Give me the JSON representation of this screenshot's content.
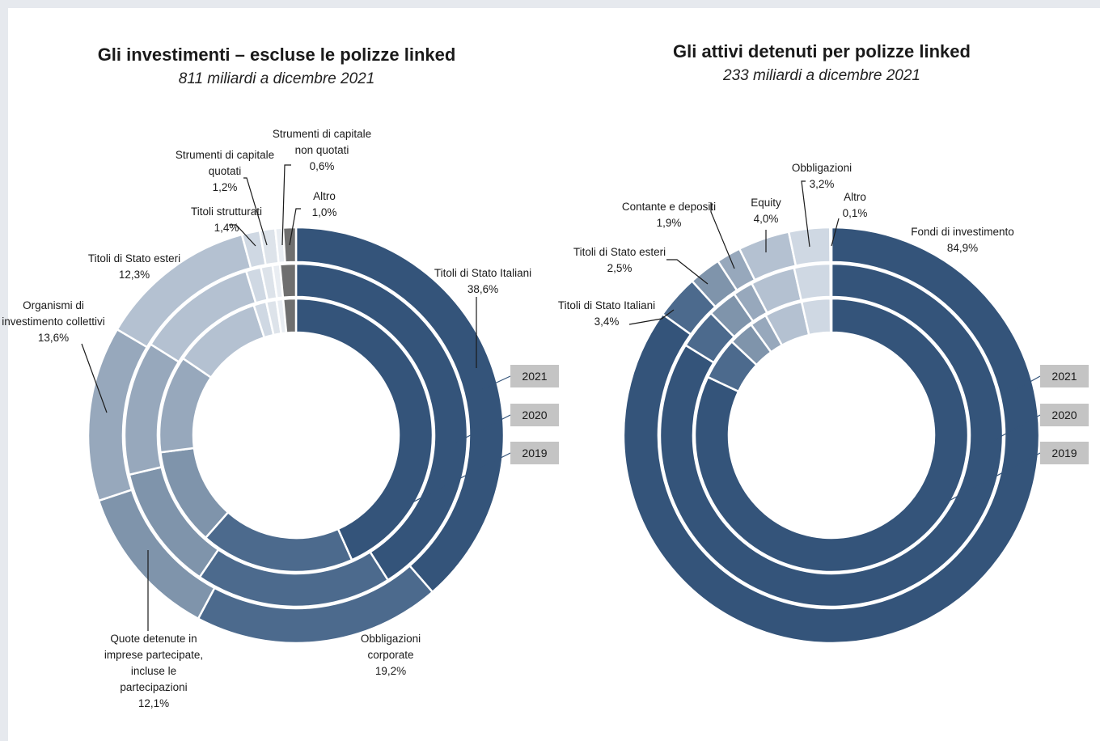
{
  "chart_data": [
    {
      "type": "donut",
      "title": "Gli investimenti – escluse le polizze linked",
      "subtitle": "811 miliardi a dicembre 2021",
      "rings": [
        "2021",
        "2020",
        "2019"
      ],
      "categories": [
        "Titoli di Stato Italiani",
        "Obbligazioni corporate",
        "Quote detenute in imprese partecipate, incluse le partecipazioni",
        "Organismi di investimento collettivi",
        "Titoli di Stato esteri",
        "Titoli strutturati",
        "Strumenti di capitale quotati",
        "Strumenti di capitale non quotati",
        "Altro"
      ],
      "colors": [
        "#34547a",
        "#4c6a8d",
        "#7f94ab",
        "#97a8bc",
        "#b4c1d1",
        "#cfd8e3",
        "#dde3ea",
        "#e9edf2",
        "#6f6f6f"
      ],
      "series": [
        {
          "name": "2021",
          "values": [
            38.6,
            19.2,
            12.1,
            13.6,
            12.3,
            1.4,
            1.2,
            0.6,
            1.0
          ]
        },
        {
          "name": "2020",
          "values": [
            41.0,
            18.5,
            11.8,
            12.6,
            11.4,
            1.4,
            1.1,
            0.7,
            1.5
          ]
        },
        {
          "name": "2019",
          "values": [
            43.3,
            18.2,
            11.5,
            11.5,
            10.5,
            1.5,
            1.2,
            0.8,
            1.5
          ]
        }
      ],
      "labels": [
        {
          "lines": [
            "Titoli di Stato Italiani",
            "38,6%"
          ]
        },
        {
          "lines": [
            "Obbligazioni",
            "corporate",
            "19,2%"
          ]
        },
        {
          "lines": [
            "Quote detenute in",
            "imprese partecipate,",
            "incluse le",
            "partecipazioni",
            "12,1%"
          ]
        },
        {
          "lines": [
            "Organismi di",
            "investimento collettivi",
            "13,6%"
          ]
        },
        {
          "lines": [
            "Titoli di Stato esteri",
            "12,3%"
          ]
        },
        {
          "lines": [
            "Titoli strutturati",
            "1,4%"
          ]
        },
        {
          "lines": [
            "Strumenti di capitale",
            "quotati",
            "1,2%"
          ]
        },
        {
          "lines": [
            "Strumenti di capitale",
            "non quotati",
            "0,6%"
          ]
        },
        {
          "lines": [
            "Altro",
            "1,0%"
          ]
        }
      ]
    },
    {
      "type": "donut",
      "title": "Gli attivi detenuti per polizze linked",
      "subtitle": "233 miliardi a dicembre 2021",
      "rings": [
        "2021",
        "2020",
        "2019"
      ],
      "categories": [
        "Fondi di investimento",
        "Titoli di Stato Italiani",
        "Titoli di Stato esteri",
        "Contante e depositi",
        "Equity",
        "Obbligazioni",
        "Altro"
      ],
      "colors": [
        "#34547a",
        "#4c6a8d",
        "#7f94ab",
        "#97a8bc",
        "#b4c1d1",
        "#cfd8e3",
        "#e9edf2"
      ],
      "series": [
        {
          "name": "2021",
          "values": [
            84.9,
            3.4,
            2.5,
            1.9,
            4.0,
            3.2,
            0.1
          ]
        },
        {
          "name": "2020",
          "values": [
            83.8,
            3.8,
            2.8,
            1.9,
            4.2,
            3.4,
            0.1
          ]
        },
        {
          "name": "2019",
          "values": [
            82.0,
            5.0,
            3.0,
            2.0,
            4.5,
            3.4,
            0.1
          ]
        }
      ],
      "labels": [
        {
          "lines": [
            "Fondi di investimento",
            "84,9%"
          ]
        },
        {
          "lines": [
            "Titoli di Stato Italiani",
            "3,4%"
          ]
        },
        {
          "lines": [
            "Titoli di Stato esteri",
            "2,5%"
          ]
        },
        {
          "lines": [
            "Contante e depositi",
            "1,9%"
          ]
        },
        {
          "lines": [
            "Equity",
            "4,0%"
          ]
        },
        {
          "lines": [
            "Obbligazioni",
            "3,2%"
          ]
        },
        {
          "lines": [
            "Altro",
            "0,1%"
          ]
        }
      ]
    }
  ]
}
